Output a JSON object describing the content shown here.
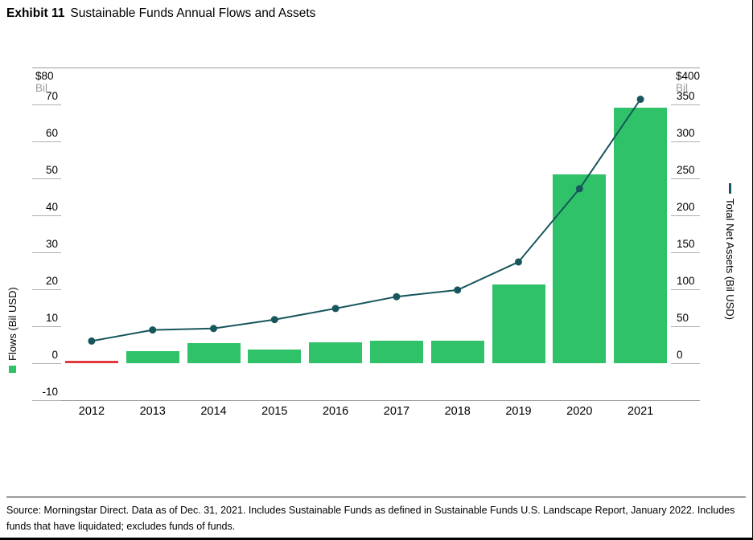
{
  "title": {
    "exhibit": "Exhibit 11",
    "text": "Sustainable Funds Annual Flows and Assets"
  },
  "left_axis": {
    "max_label": "$80",
    "unit": "Bil",
    "title": "Flows (Bil USD)",
    "ticks": [
      70,
      60,
      50,
      40,
      30,
      20,
      10,
      0,
      -10
    ]
  },
  "right_axis": {
    "max_label": "$400",
    "unit": "Bil",
    "title": "Total Net Assets (Bil USD)",
    "ticks": [
      350,
      300,
      250,
      200,
      150,
      100,
      50,
      0
    ]
  },
  "chart_data": {
    "type": "bar+line",
    "title": "Sustainable Funds Annual Flows and Assets",
    "categories": [
      "2012",
      "2013",
      "2014",
      "2015",
      "2016",
      "2017",
      "2018",
      "2019",
      "2020",
      "2021"
    ],
    "series": [
      {
        "name": "Flows (Bil USD)",
        "type": "bar",
        "axis": "left",
        "values": [
          -0.5,
          3.2,
          5.5,
          3.6,
          5.6,
          6.0,
          6.0,
          21.4,
          51.1,
          69.2
        ],
        "color": "#2fc268",
        "negative_color": "#e5383d"
      },
      {
        "name": "Total Net Assets (Bil USD)",
        "type": "line",
        "axis": "right",
        "values": [
          30,
          45,
          47,
          59,
          74,
          90,
          99,
          137,
          236,
          357
        ],
        "color": "#17565c"
      }
    ],
    "left_ylim": [
      -10,
      80
    ],
    "right_ylim": [
      -50,
      400
    ],
    "grid": "ticks-outside-only",
    "legend_position": "rotated-axis-titles"
  },
  "footer": {
    "source": "Source: Morningstar Direct. Data as of Dec. 31, 2021. Includes Sustainable Funds as defined in Sustainable Funds U.S. Landscape Report, January 2022. Includes funds that have liquidated; excludes funds of funds."
  },
  "colors": {
    "bar_green": "#2fc268",
    "negative_red": "#e5383d",
    "line_teal": "#17565c",
    "grid_gray": "#a0a0a0",
    "unit_gray": "#9b9b9b"
  }
}
